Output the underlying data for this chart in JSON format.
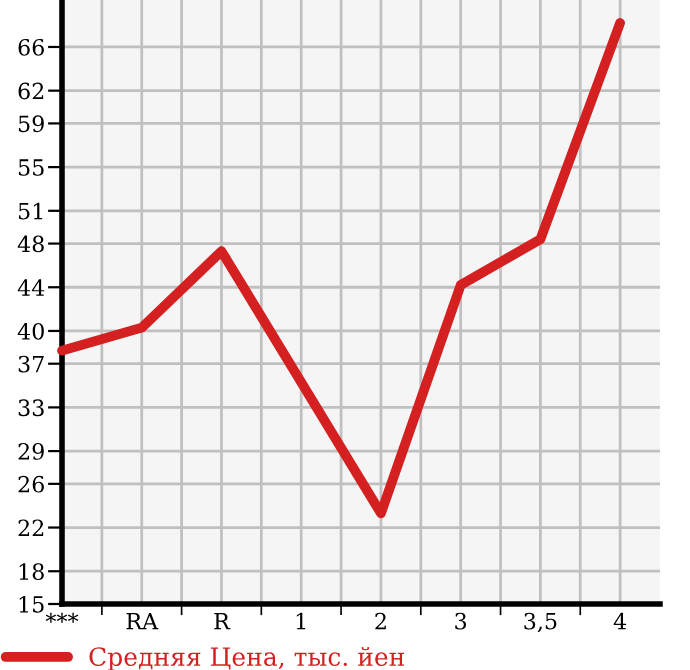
{
  "chart_data": {
    "type": "line",
    "categories": [
      "***",
      "RA",
      "R",
      "1",
      "2",
      "3",
      "3,5",
      "4"
    ],
    "series": [
      {
        "name": "Средняя Цена, тыс. йен",
        "color": "#d42020",
        "values": [
          38.2,
          40.3,
          47.3,
          35.3,
          23.3,
          44.2,
          48.4,
          68.2
        ]
      }
    ],
    "ylim": [
      15,
      70.3
    ],
    "yticks": [
      15,
      18,
      22,
      26,
      29,
      33,
      37,
      40,
      44,
      48,
      51,
      55,
      59,
      62,
      66
    ],
    "grid": true,
    "legend": "bottom left",
    "marker": "none",
    "line_style": "solid"
  }
}
